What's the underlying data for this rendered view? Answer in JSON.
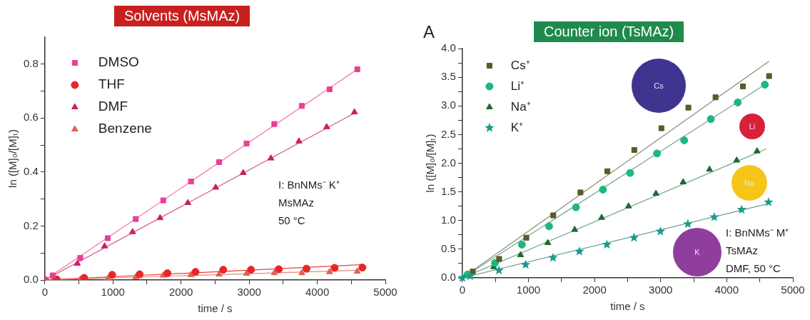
{
  "chart_data": [
    {
      "type": "scatter",
      "title": "Solvents (MsMAz)",
      "xlabel": "time / s",
      "ylabel": "ln ([M]₀/[M]ₜ)",
      "xlim": [
        0,
        5000
      ],
      "ylim": [
        0,
        0.9
      ],
      "legend": "top left",
      "grid": false,
      "xticks": [
        0,
        {
          "value": 500,
          "label": null
        },
        1000,
        {
          "value": 1500,
          "label": null
        },
        2000,
        {
          "value": 2500,
          "label": null
        },
        3000,
        {
          "value": 3500,
          "label": null
        },
        4000,
        {
          "value": 4500,
          "label": null
        },
        5000
      ],
      "yticks": [
        {
          "value": 0,
          "label": "0.0"
        },
        {
          "value": 0.1,
          "label": null
        },
        0.2,
        {
          "value": 0.3,
          "label": null
        },
        0.4,
        {
          "value": 0.5,
          "label": null
        },
        0.6,
        {
          "value": 0.7,
          "label": null
        },
        0.8
      ],
      "annotations": [
        "I: BnNMs⁻ K⁺",
        "MsMAz",
        "50 °C"
      ],
      "series": [
        {
          "name": "DMSO",
          "color": "#ea3f93",
          "marker": "square",
          "x": [
            0,
            115,
            520,
            923,
            1335,
            1738,
            2146,
            2558,
            2962,
            3369,
            3773,
            4181,
            4588
          ],
          "values": [
            0,
            0.017,
            0.082,
            0.155,
            0.226,
            0.295,
            0.365,
            0.437,
            0.506,
            0.578,
            0.645,
            0.707,
            0.781
          ]
        },
        {
          "name": "THF",
          "color": "#e8262a",
          "marker": "circle",
          "x": [
            0,
            173,
            577,
            988,
            1392,
            1800,
            2212,
            2619,
            3027,
            3435,
            3842,
            4254,
            4662
          ],
          "values": [
            0,
            0.002,
            0.008,
            0.019,
            0.021,
            0.025,
            0.03,
            0.038,
            0.038,
            0.04,
            0.042,
            0.045,
            0.046
          ]
        },
        {
          "name": "DMF",
          "color": "#c8206a",
          "marker": "triangle",
          "x": [
            0,
            115,
            477,
            877,
            1288,
            1692,
            2100,
            2508,
            2912,
            3319,
            3731,
            4138,
            4546
          ],
          "values": [
            0,
            null,
            0.061,
            0.125,
            0.178,
            0.23,
            0.286,
            0.343,
            0.397,
            0.451,
            0.514,
            0.567,
            0.622
          ]
        },
        {
          "name": "Benzene",
          "color": "#e0604f",
          "marker": "triangle",
          "x": [
            0,
            115,
            520,
            923,
            1335,
            1738,
            2146,
            2558,
            2962,
            3369,
            3773,
            4181,
            4588
          ],
          "values": [
            0,
            0,
            0.002,
            0.005,
            0.011,
            0.017,
            0.019,
            0.021,
            0.024,
            0.026,
            0.026,
            0.03,
            0.032
          ]
        },
        {
          "type": "line",
          "color": "#ee6fa8",
          "marker": "none",
          "x": [
            0,
            4600
          ],
          "values": [
            0,
            0.783
          ]
        },
        {
          "type": "line",
          "color": "#e8403f",
          "marker": "none",
          "x": [
            0,
            4680
          ],
          "values": [
            0,
            0.057
          ]
        },
        {
          "type": "line",
          "color": "#d05a8a",
          "marker": "none",
          "x": [
            0,
            4560
          ],
          "values": [
            0,
            0.62
          ]
        },
        {
          "type": "line",
          "color": "#e88878",
          "marker": "none",
          "x": [
            0,
            4600
          ],
          "values": [
            0,
            0.036
          ]
        }
      ]
    },
    {
      "type": "scatter",
      "title": "Counter ion (TsMAz)",
      "xlabel": "time / s",
      "ylabel": "ln ([M]₀/[M]ₜ)",
      "xlim": [
        0,
        5000
      ],
      "ylim": [
        0,
        4
      ],
      "legend": "top left",
      "grid": false,
      "xticks": [
        0,
        {
          "value": 500,
          "label": null
        },
        1000,
        {
          "value": 1500,
          "label": null
        },
        2000,
        {
          "value": 2500,
          "label": null
        },
        3000,
        {
          "value": 3500,
          "label": null
        },
        4000,
        {
          "value": 4500,
          "label": null
        },
        5000
      ],
      "yticks": [
        {
          "value": 0,
          "label": "0.0"
        },
        {
          "value": 0.25,
          "label": null
        },
        0.5,
        {
          "value": 0.75,
          "label": null
        },
        {
          "value": 1,
          "label": "1.0"
        },
        {
          "value": 1.25,
          "label": null
        },
        1.5,
        {
          "value": 1.75,
          "label": null
        },
        {
          "value": 2,
          "label": "2.0"
        },
        {
          "value": 2.25,
          "label": null
        },
        2.5,
        {
          "value": 2.75,
          "label": null
        },
        {
          "value": 3,
          "label": "3.0"
        },
        {
          "value": 3.25,
          "label": null
        },
        3.5,
        {
          "value": 3.75,
          "label": null
        },
        {
          "value": 4,
          "label": "4.0"
        }
      ],
      "annotations": [
        "A",
        "I: BnNMs⁻ M⁺",
        "TsMAz",
        "DMF, 50 °C",
        "Cs",
        "Li",
        "Na",
        "K"
      ],
      "series": [
        {
          "name": "Cs⁺",
          "color": "#5c5a2a",
          "marker": "square",
          "x": [
            0,
            158,
            557,
            968,
            1375,
            1787,
            2194,
            2601,
            3012,
            3419,
            3830,
            4245,
            4640
          ],
          "values": [
            0,
            0.11,
            0.33,
            0.7,
            1.09,
            1.49,
            1.86,
            2.23,
            2.61,
            2.97,
            3.15,
            3.34,
            3.52
          ]
        },
        {
          "name": "Li⁺",
          "color": "#1db87a",
          "marker": "circle",
          "x": [
            79,
            494,
            901,
            1312,
            1719,
            2127,
            2538,
            2945,
            3356,
            3759,
            4166,
            4577
          ],
          "values": [
            0.06,
            0.26,
            0.58,
            0.9,
            1.23,
            1.54,
            1.83,
            2.17,
            2.4,
            2.77,
            3.06,
            3.37
          ]
        },
        {
          "name": "Na⁺",
          "color": "#1e6a30",
          "marker": "triangle",
          "x": [
            474,
            881,
            1292,
            1700,
            2107,
            2514,
            2929,
            3340,
            3739,
            4150,
            4458
          ],
          "values": [
            0.19,
            0.4,
            0.61,
            0.84,
            1.05,
            1.25,
            1.47,
            1.67,
            1.89,
            2.05,
            2.21
          ]
        },
        {
          "name": "K⁺",
          "color": "#1a9a8c",
          "marker": "star",
          "x": [
            0,
            119,
            553,
            957,
            1372,
            1771,
            2186,
            2597,
            2996,
            3411,
            3810,
            4225,
            4632
          ],
          "values": [
            0,
            0.03,
            0.13,
            0.23,
            0.35,
            0.46,
            0.58,
            0.7,
            0.81,
            0.94,
            1.06,
            1.19,
            1.32
          ]
        },
        {
          "type": "line",
          "color": "#8a8a7a",
          "marker": "none",
          "x": [
            0,
            4640
          ],
          "values": [
            0,
            3.78
          ]
        },
        {
          "type": "line",
          "color": "#6aa090",
          "marker": "none",
          "x": [
            0,
            4577
          ],
          "values": [
            0,
            3.37
          ]
        },
        {
          "type": "line",
          "color": "#6aa090",
          "marker": "none",
          "x": [
            0,
            4600
          ],
          "values": [
            0,
            2.25
          ]
        },
        {
          "type": "line",
          "color": "#6aa090",
          "marker": "none",
          "x": [
            0,
            4650
          ],
          "values": [
            0,
            1.3
          ]
        }
      ]
    }
  ]
}
